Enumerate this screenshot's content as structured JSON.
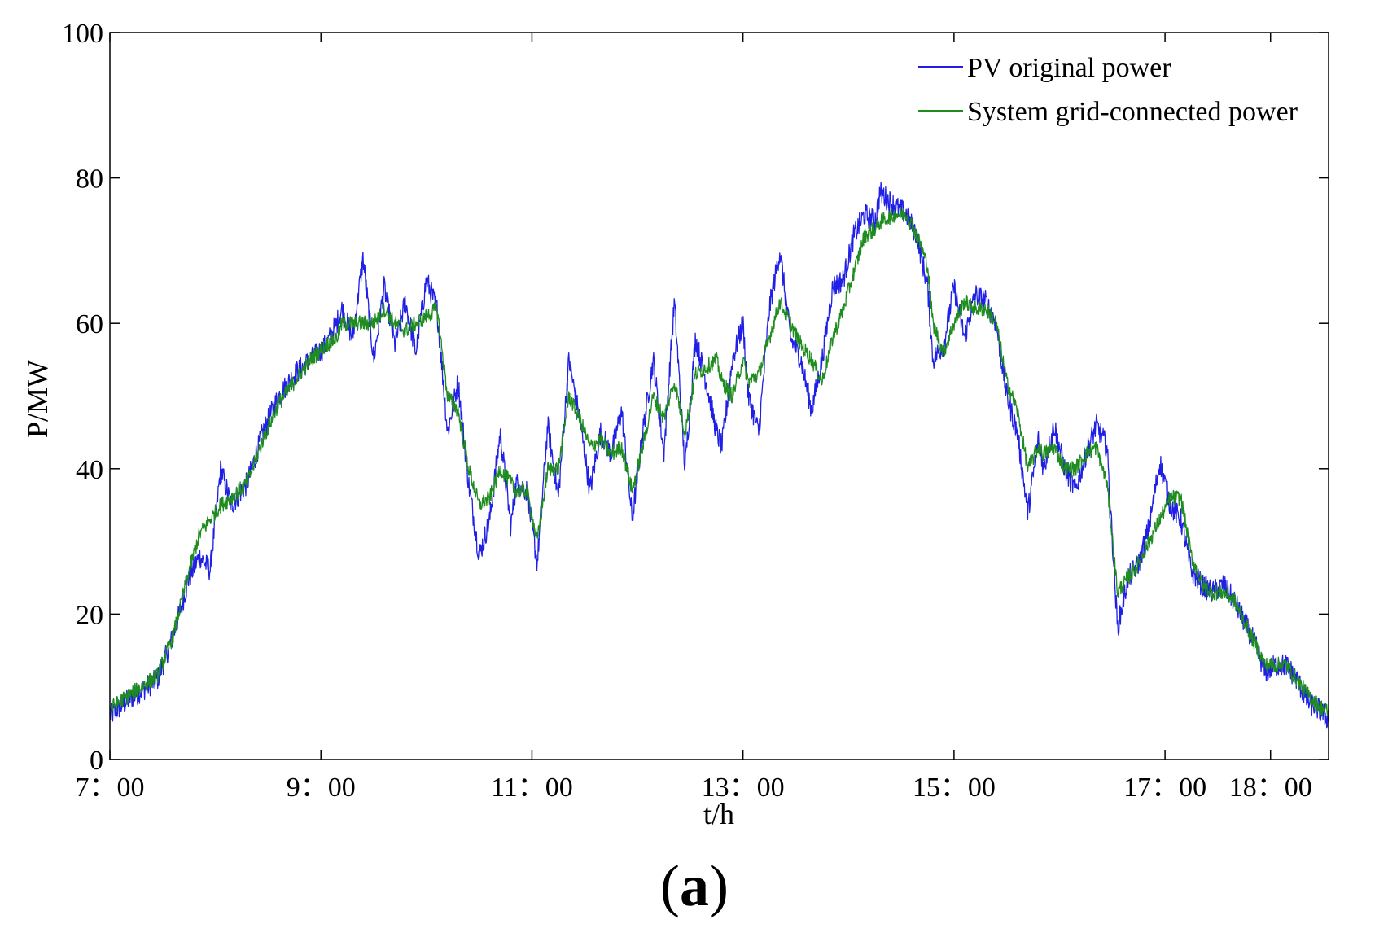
{
  "chart_data": {
    "type": "line",
    "title": "",
    "xlabel": "t/h",
    "ylabel": "P/MW",
    "panel_label_open": "(",
    "panel_label_letter": "a",
    "panel_label_close": ")",
    "xlim": [
      7,
      18.55
    ],
    "ylim": [
      0,
      100
    ],
    "grid": false,
    "legend_position": "top-right",
    "x_ticks": [
      7,
      9,
      11,
      13,
      15,
      17,
      18
    ],
    "x_tick_labels": [
      "7：00",
      "9：00",
      "11：00",
      "13：00",
      "15：00",
      "17：00",
      "18：00"
    ],
    "y_ticks": [
      0,
      20,
      40,
      60,
      80,
      100
    ],
    "y_tick_labels": [
      "0",
      "20",
      "40",
      "60",
      "80",
      "100"
    ],
    "colors": {
      "pv": "#1f1fe6",
      "grid": "#1e8c1e"
    },
    "series": [
      {
        "name": "PV original power",
        "color": "#1f1fe6",
        "noise": 1.6,
        "x": [
          7.0,
          7.2,
          7.35,
          7.45,
          7.6,
          7.75,
          7.85,
          7.95,
          8.05,
          8.15,
          8.3,
          8.45,
          8.6,
          8.75,
          8.9,
          9.05,
          9.15,
          9.2,
          9.3,
          9.4,
          9.5,
          9.6,
          9.7,
          9.8,
          9.9,
          10.0,
          10.1,
          10.2,
          10.3,
          10.4,
          10.5,
          10.6,
          10.7,
          10.8,
          10.85,
          10.95,
          11.05,
          11.15,
          11.25,
          11.35,
          11.45,
          11.55,
          11.65,
          11.75,
          11.85,
          11.95,
          12.05,
          12.15,
          12.25,
          12.35,
          12.45,
          12.55,
          12.65,
          12.75,
          12.8,
          12.9,
          13.0,
          13.05,
          13.15,
          13.25,
          13.35,
          13.45,
          13.55,
          13.65,
          13.75,
          13.85,
          13.95,
          14.05,
          14.15,
          14.25,
          14.3,
          14.45,
          14.55,
          14.65,
          14.75,
          14.8,
          14.9,
          15.0,
          15.1,
          15.2,
          15.3,
          15.4,
          15.5,
          15.6,
          15.7,
          15.8,
          15.85,
          15.95,
          16.05,
          16.15,
          16.25,
          16.35,
          16.45,
          16.55,
          16.65,
          16.75,
          16.85,
          16.95,
          17.05,
          17.15,
          17.25,
          17.35,
          17.45,
          17.55,
          17.65,
          17.75,
          17.85,
          17.95,
          18.05,
          18.15,
          18.25,
          18.35,
          18.45,
          18.55
        ],
        "y": [
          6.0,
          8.5,
          10.0,
          11.0,
          17.0,
          25.0,
          28.0,
          26.0,
          40.0,
          35.0,
          38.0,
          45.0,
          50.0,
          53.0,
          55.0,
          57.0,
          60.0,
          62.0,
          58.0,
          69.0,
          55.0,
          65.0,
          57.0,
          63.0,
          56.0,
          66.0,
          62.0,
          45.0,
          52.0,
          38.0,
          28.0,
          33.0,
          45.0,
          32.0,
          38.0,
          37.0,
          27.0,
          46.0,
          36.0,
          55.0,
          47.0,
          37.0,
          45.0,
          42.0,
          48.0,
          33.0,
          45.0,
          55.0,
          42.0,
          63.0,
          40.0,
          58.0,
          52.0,
          45.0,
          43.0,
          55.0,
          60.0,
          50.0,
          45.0,
          62.0,
          70.0,
          58.0,
          55.0,
          48.0,
          55.0,
          65.0,
          66.0,
          72.0,
          75.0,
          74.0,
          78.0,
          76.0,
          75.0,
          72.0,
          65.0,
          55.0,
          57.0,
          65.0,
          58.0,
          64.0,
          63.0,
          60.0,
          50.0,
          45.0,
          34.0,
          44.0,
          40.0,
          46.0,
          40.0,
          37.0,
          42.0,
          46.0,
          43.0,
          18.0,
          25.0,
          27.0,
          32.0,
          41.0,
          35.0,
          33.0,
          26.0,
          24.0,
          23.0,
          24.0,
          22.0,
          19.0,
          16.0,
          12.0,
          13.0,
          13.0,
          11.0,
          8.0,
          7.0,
          5.5
        ]
      },
      {
        "name": "System grid-connected power",
        "color": "#1e8c1e",
        "noise": 1.1,
        "x": [
          7.0,
          7.2,
          7.35,
          7.45,
          7.6,
          7.75,
          7.85,
          7.95,
          8.05,
          8.15,
          8.3,
          8.45,
          8.6,
          8.75,
          8.9,
          9.05,
          9.15,
          9.2,
          9.3,
          9.4,
          9.5,
          9.6,
          9.7,
          9.8,
          9.9,
          10.0,
          10.1,
          10.2,
          10.3,
          10.4,
          10.5,
          10.6,
          10.7,
          10.8,
          10.85,
          10.95,
          11.05,
          11.15,
          11.25,
          11.35,
          11.45,
          11.55,
          11.65,
          11.75,
          11.85,
          11.95,
          12.05,
          12.15,
          12.25,
          12.35,
          12.45,
          12.55,
          12.65,
          12.75,
          12.8,
          12.9,
          13.0,
          13.05,
          13.15,
          13.25,
          13.35,
          13.45,
          13.55,
          13.65,
          13.75,
          13.85,
          13.95,
          14.05,
          14.15,
          14.25,
          14.3,
          14.45,
          14.55,
          14.65,
          14.75,
          14.8,
          14.9,
          15.0,
          15.1,
          15.2,
          15.3,
          15.4,
          15.5,
          15.6,
          15.7,
          15.8,
          15.85,
          15.95,
          16.05,
          16.15,
          16.25,
          16.35,
          16.45,
          16.55,
          16.65,
          16.75,
          16.85,
          16.95,
          17.05,
          17.15,
          17.25,
          17.35,
          17.45,
          17.55,
          17.65,
          17.75,
          17.85,
          17.95,
          18.05,
          18.15,
          18.25,
          18.35,
          18.45,
          18.55
        ],
        "y": [
          7.0,
          9.0,
          10.5,
          11.5,
          17.0,
          26.0,
          31.0,
          33.0,
          35.0,
          36.0,
          38.0,
          44.0,
          49.0,
          52.0,
          55.0,
          57.0,
          58.0,
          60.0,
          60.0,
          60.0,
          60.0,
          62.0,
          60.0,
          59.0,
          60.0,
          61.0,
          62.0,
          50.0,
          48.0,
          40.0,
          35.0,
          36.0,
          40.0,
          38.0,
          37.0,
          37.0,
          30.0,
          40.0,
          40.0,
          50.0,
          47.0,
          43.0,
          44.0,
          42.0,
          43.0,
          37.0,
          43.0,
          50.0,
          47.0,
          52.0,
          45.0,
          53.0,
          54.0,
          55.0,
          52.0,
          50.0,
          55.0,
          52.0,
          53.0,
          58.0,
          63.0,
          60.0,
          57.0,
          55.0,
          52.0,
          58.0,
          62.0,
          67.0,
          72.0,
          73.0,
          74.0,
          75.0,
          75.0,
          72.0,
          68.0,
          60.0,
          56.0,
          60.0,
          63.0,
          62.0,
          62.0,
          60.0,
          52.0,
          48.0,
          40.0,
          43.0,
          42.0,
          43.0,
          40.0,
          40.0,
          42.0,
          43.0,
          38.0,
          23.0,
          25.0,
          27.0,
          30.0,
          33.0,
          36.0,
          36.0,
          28.0,
          24.0,
          23.0,
          23.0,
          22.0,
          19.0,
          16.0,
          13.0,
          13.0,
          13.0,
          11.0,
          9.0,
          7.5,
          6.5
        ]
      }
    ]
  }
}
